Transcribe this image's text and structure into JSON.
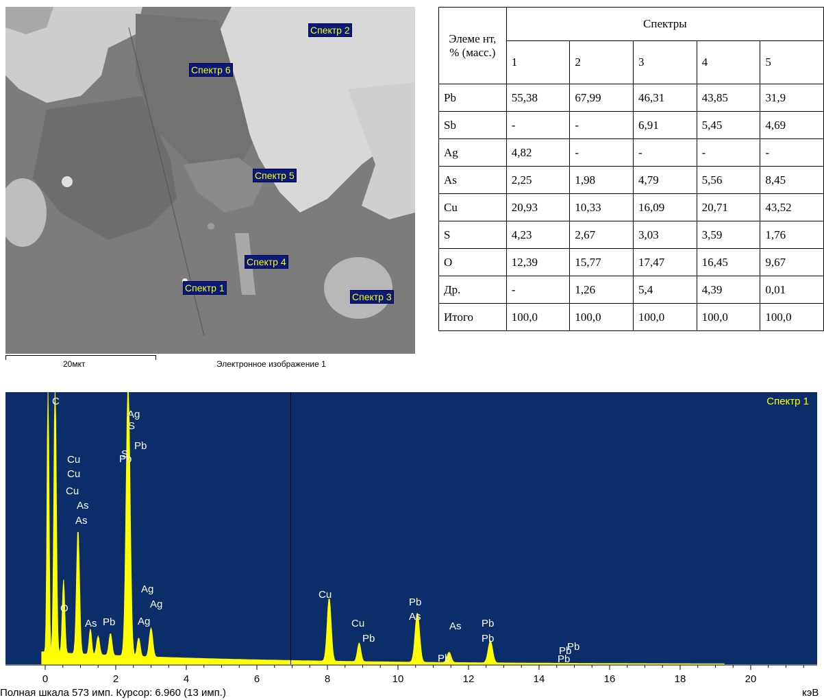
{
  "sem_image": {
    "spectrum_labels": [
      "Спектр 1",
      "Спектр 2",
      "Спектр 3",
      "Спектр 4",
      "Спектр 5",
      "Спектр 6"
    ],
    "scale_label": "20мкт",
    "caption": "Электронное изображение 1"
  },
  "table": {
    "element_header": "Элеме нт, % (масс.)",
    "spectra_header": "Спектры",
    "spectrum_numbers": [
      "1",
      "2",
      "3",
      "4",
      "5"
    ],
    "rows": [
      {
        "element": "Pb",
        "values": [
          "55,38",
          "67,99",
          "46,31",
          "43,85",
          "31,9"
        ]
      },
      {
        "element": "Sb",
        "values": [
          "-",
          "-",
          "6,91",
          "5,45",
          "4,69"
        ]
      },
      {
        "element": "Ag",
        "values": [
          "4,82",
          "-",
          "-",
          "-",
          "-"
        ]
      },
      {
        "element": "As",
        "values": [
          "2,25",
          "1,98",
          "4,79",
          "5,56",
          "8,45"
        ]
      },
      {
        "element": "Cu",
        "values": [
          "20,93",
          "10,33",
          "16,09",
          "20,71",
          "43,52"
        ]
      },
      {
        "element": "S",
        "values": [
          "4,23",
          "2,67",
          "3,03",
          "3,59",
          "1,76"
        ]
      },
      {
        "element": "O",
        "values": [
          "12,39",
          "15,77",
          "17,47",
          "16,45",
          "9,67"
        ]
      },
      {
        "element": "Др.",
        "values": [
          "-",
          "1,26",
          "5,4",
          "4,39",
          "0,01"
        ]
      },
      {
        "element": "Итого",
        "values": [
          "100,0",
          "100,0",
          "100,0",
          "100,0",
          "100,0"
        ]
      }
    ]
  },
  "spectrum": {
    "title": "Спектр 1",
    "status": "Полная шкала 573 имп. Курсор: 6.960  (13 имп.)",
    "units": "кэВ",
    "cursor_kev": 6.96,
    "x_ticks": [
      "0",
      "2",
      "4",
      "6",
      "8",
      "10",
      "12",
      "14",
      "16",
      "18",
      "20"
    ],
    "peak_labels": [
      "C",
      "O",
      "Cu",
      "Cu",
      "Cu",
      "As",
      "As",
      "As",
      "Pb",
      "Ag",
      "S",
      "S",
      "Pb",
      "Pb",
      "Ag",
      "Ag",
      "Ag",
      "Cu",
      "Cu",
      "Pb",
      "Pb",
      "As",
      "As",
      "Pb",
      "Pb",
      "Pb",
      "Pb",
      "Pb",
      "Pb"
    ],
    "colors": {
      "background": "#0b2e6a",
      "trace": "#ffff00",
      "label": "#ffffff",
      "title": "#ffff00"
    }
  }
}
